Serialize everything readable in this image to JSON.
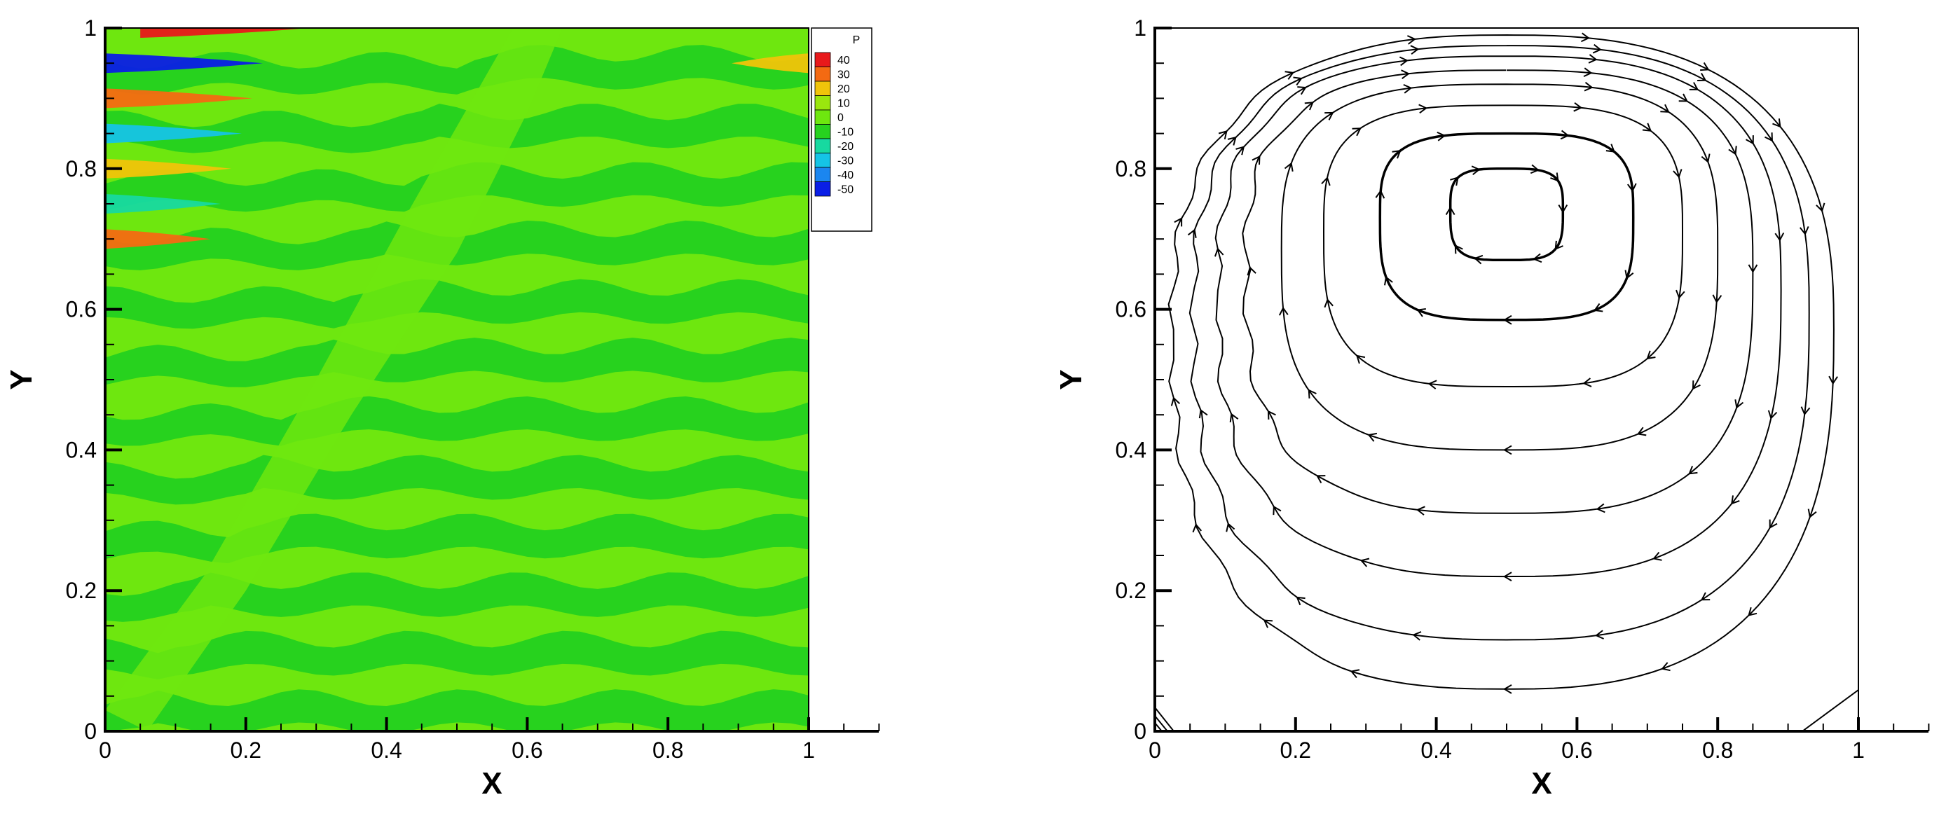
{
  "chart_data": [
    {
      "type": "heatmap",
      "title": "",
      "xlabel": "X",
      "ylabel": "Y",
      "xlim": [
        0,
        1
      ],
      "ylim": [
        0,
        1
      ],
      "xticks": [
        "0",
        "0.2",
        "0.4",
        "0.6",
        "0.8",
        "1"
      ],
      "yticks": [
        "0",
        "0.2",
        "0.4",
        "0.6",
        "0.8",
        "1"
      ],
      "xtick_values": [
        0,
        0.2,
        0.4,
        0.6,
        0.8,
        1
      ],
      "ytick_values": [
        0,
        0.2,
        0.4,
        0.6,
        0.8,
        1
      ],
      "grid": false,
      "legend": {
        "title": "P",
        "placement": "top-right",
        "levels": [
          {
            "label": "40",
            "color": "#e8191b"
          },
          {
            "label": "30",
            "color": "#f46a12"
          },
          {
            "label": "20",
            "color": "#f0c40a"
          },
          {
            "label": "10",
            "color": "#9ae60e"
          },
          {
            "label": "0",
            "color": "#6ee70f"
          },
          {
            "label": "-10",
            "color": "#27d21e"
          },
          {
            "label": "-20",
            "color": "#17d9a0"
          },
          {
            "label": "-30",
            "color": "#15c4e6"
          },
          {
            "label": "-40",
            "color": "#1b86f0"
          },
          {
            "label": "-50",
            "color": "#0a1ee6"
          }
        ]
      },
      "field": {
        "dominant_bands": [
          "#6ee70f",
          "#27d21e"
        ],
        "band_count": 24,
        "hotspots": [
          {
            "x": 0.0,
            "y": 0.95,
            "value": -50
          },
          {
            "x": 0.0,
            "y": 0.9,
            "value": 30
          },
          {
            "x": 0.0,
            "y": 0.85,
            "value": -30
          },
          {
            "x": 0.0,
            "y": 0.8,
            "value": 20
          },
          {
            "x": 0.0,
            "y": 0.75,
            "value": -20
          },
          {
            "x": 0.0,
            "y": 0.7,
            "value": 30
          },
          {
            "x": 0.05,
            "y": 1.0,
            "value": 40
          },
          {
            "x": 1.0,
            "y": 0.95,
            "value": 20
          }
        ]
      }
    },
    {
      "type": "streamline",
      "title": "",
      "xlabel": "X",
      "ylabel": "Y",
      "xlim": [
        0,
        1
      ],
      "ylim": [
        0,
        1
      ],
      "xticks": [
        "0",
        "0.2",
        "0.4",
        "0.6",
        "0.8",
        "1"
      ],
      "yticks": [
        "0",
        "0.2",
        "0.4",
        "0.6",
        "0.8",
        "1"
      ],
      "xtick_values": [
        0,
        0.2,
        0.4,
        0.6,
        0.8,
        1
      ],
      "ytick_values": [
        0,
        0.2,
        0.4,
        0.6,
        0.8,
        1
      ],
      "grid": false,
      "vortex_center": {
        "x": 0.5,
        "y": 0.74
      },
      "direction": "clockwise",
      "streamlines": [
        {
          "left": 0.42,
          "right": 0.58,
          "bottom": 0.67,
          "top": 0.8
        },
        {
          "left": 0.32,
          "right": 0.68,
          "bottom": 0.585,
          "top": 0.85
        },
        {
          "left": 0.24,
          "right": 0.75,
          "bottom": 0.49,
          "top": 0.89
        },
        {
          "left": 0.18,
          "right": 0.8,
          "bottom": 0.4,
          "top": 0.92
        },
        {
          "left": 0.13,
          "right": 0.85,
          "bottom": 0.31,
          "top": 0.94
        },
        {
          "left": 0.09,
          "right": 0.89,
          "bottom": 0.22,
          "top": 0.96
        },
        {
          "left": 0.055,
          "right": 0.93,
          "bottom": 0.13,
          "top": 0.975
        },
        {
          "left": 0.025,
          "right": 0.965,
          "bottom": 0.06,
          "top": 0.99
        }
      ]
    }
  ]
}
